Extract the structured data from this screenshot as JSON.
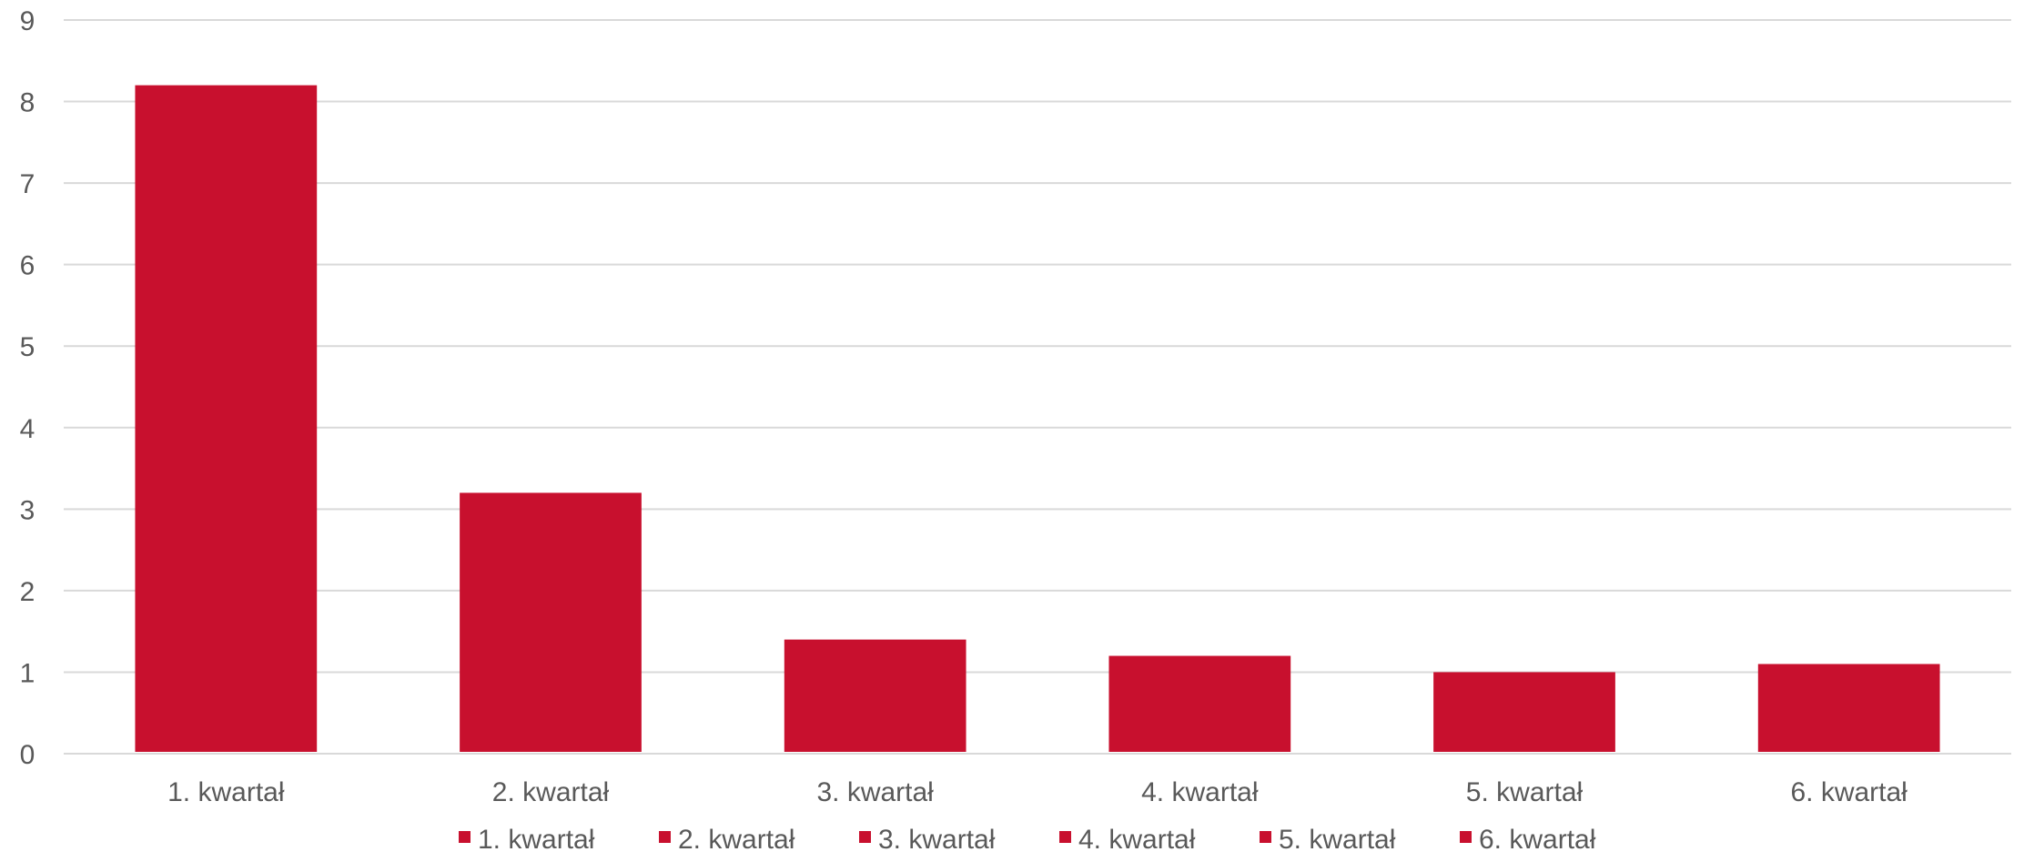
{
  "chart_data": {
    "type": "bar",
    "categories": [
      "1. kwartał",
      "2. kwartał",
      "3. kwartał",
      "4. kwartał",
      "5. kwartał",
      "6. kwartał"
    ],
    "values": [
      8.2,
      3.2,
      1.4,
      1.2,
      1.0,
      1.1
    ],
    "y_ticks": [
      "0",
      "1",
      "2",
      "3",
      "4",
      "5",
      "6",
      "7",
      "8",
      "9"
    ],
    "ylim": [
      0,
      9
    ],
    "grid": true,
    "legend": {
      "placement": "bottom",
      "entries": [
        "1. kwartał",
        "2. kwartał",
        "3. kwartał",
        "4. kwartał",
        "5. kwartał",
        "6. kwartał"
      ]
    },
    "bar_color": "#c8102e"
  }
}
